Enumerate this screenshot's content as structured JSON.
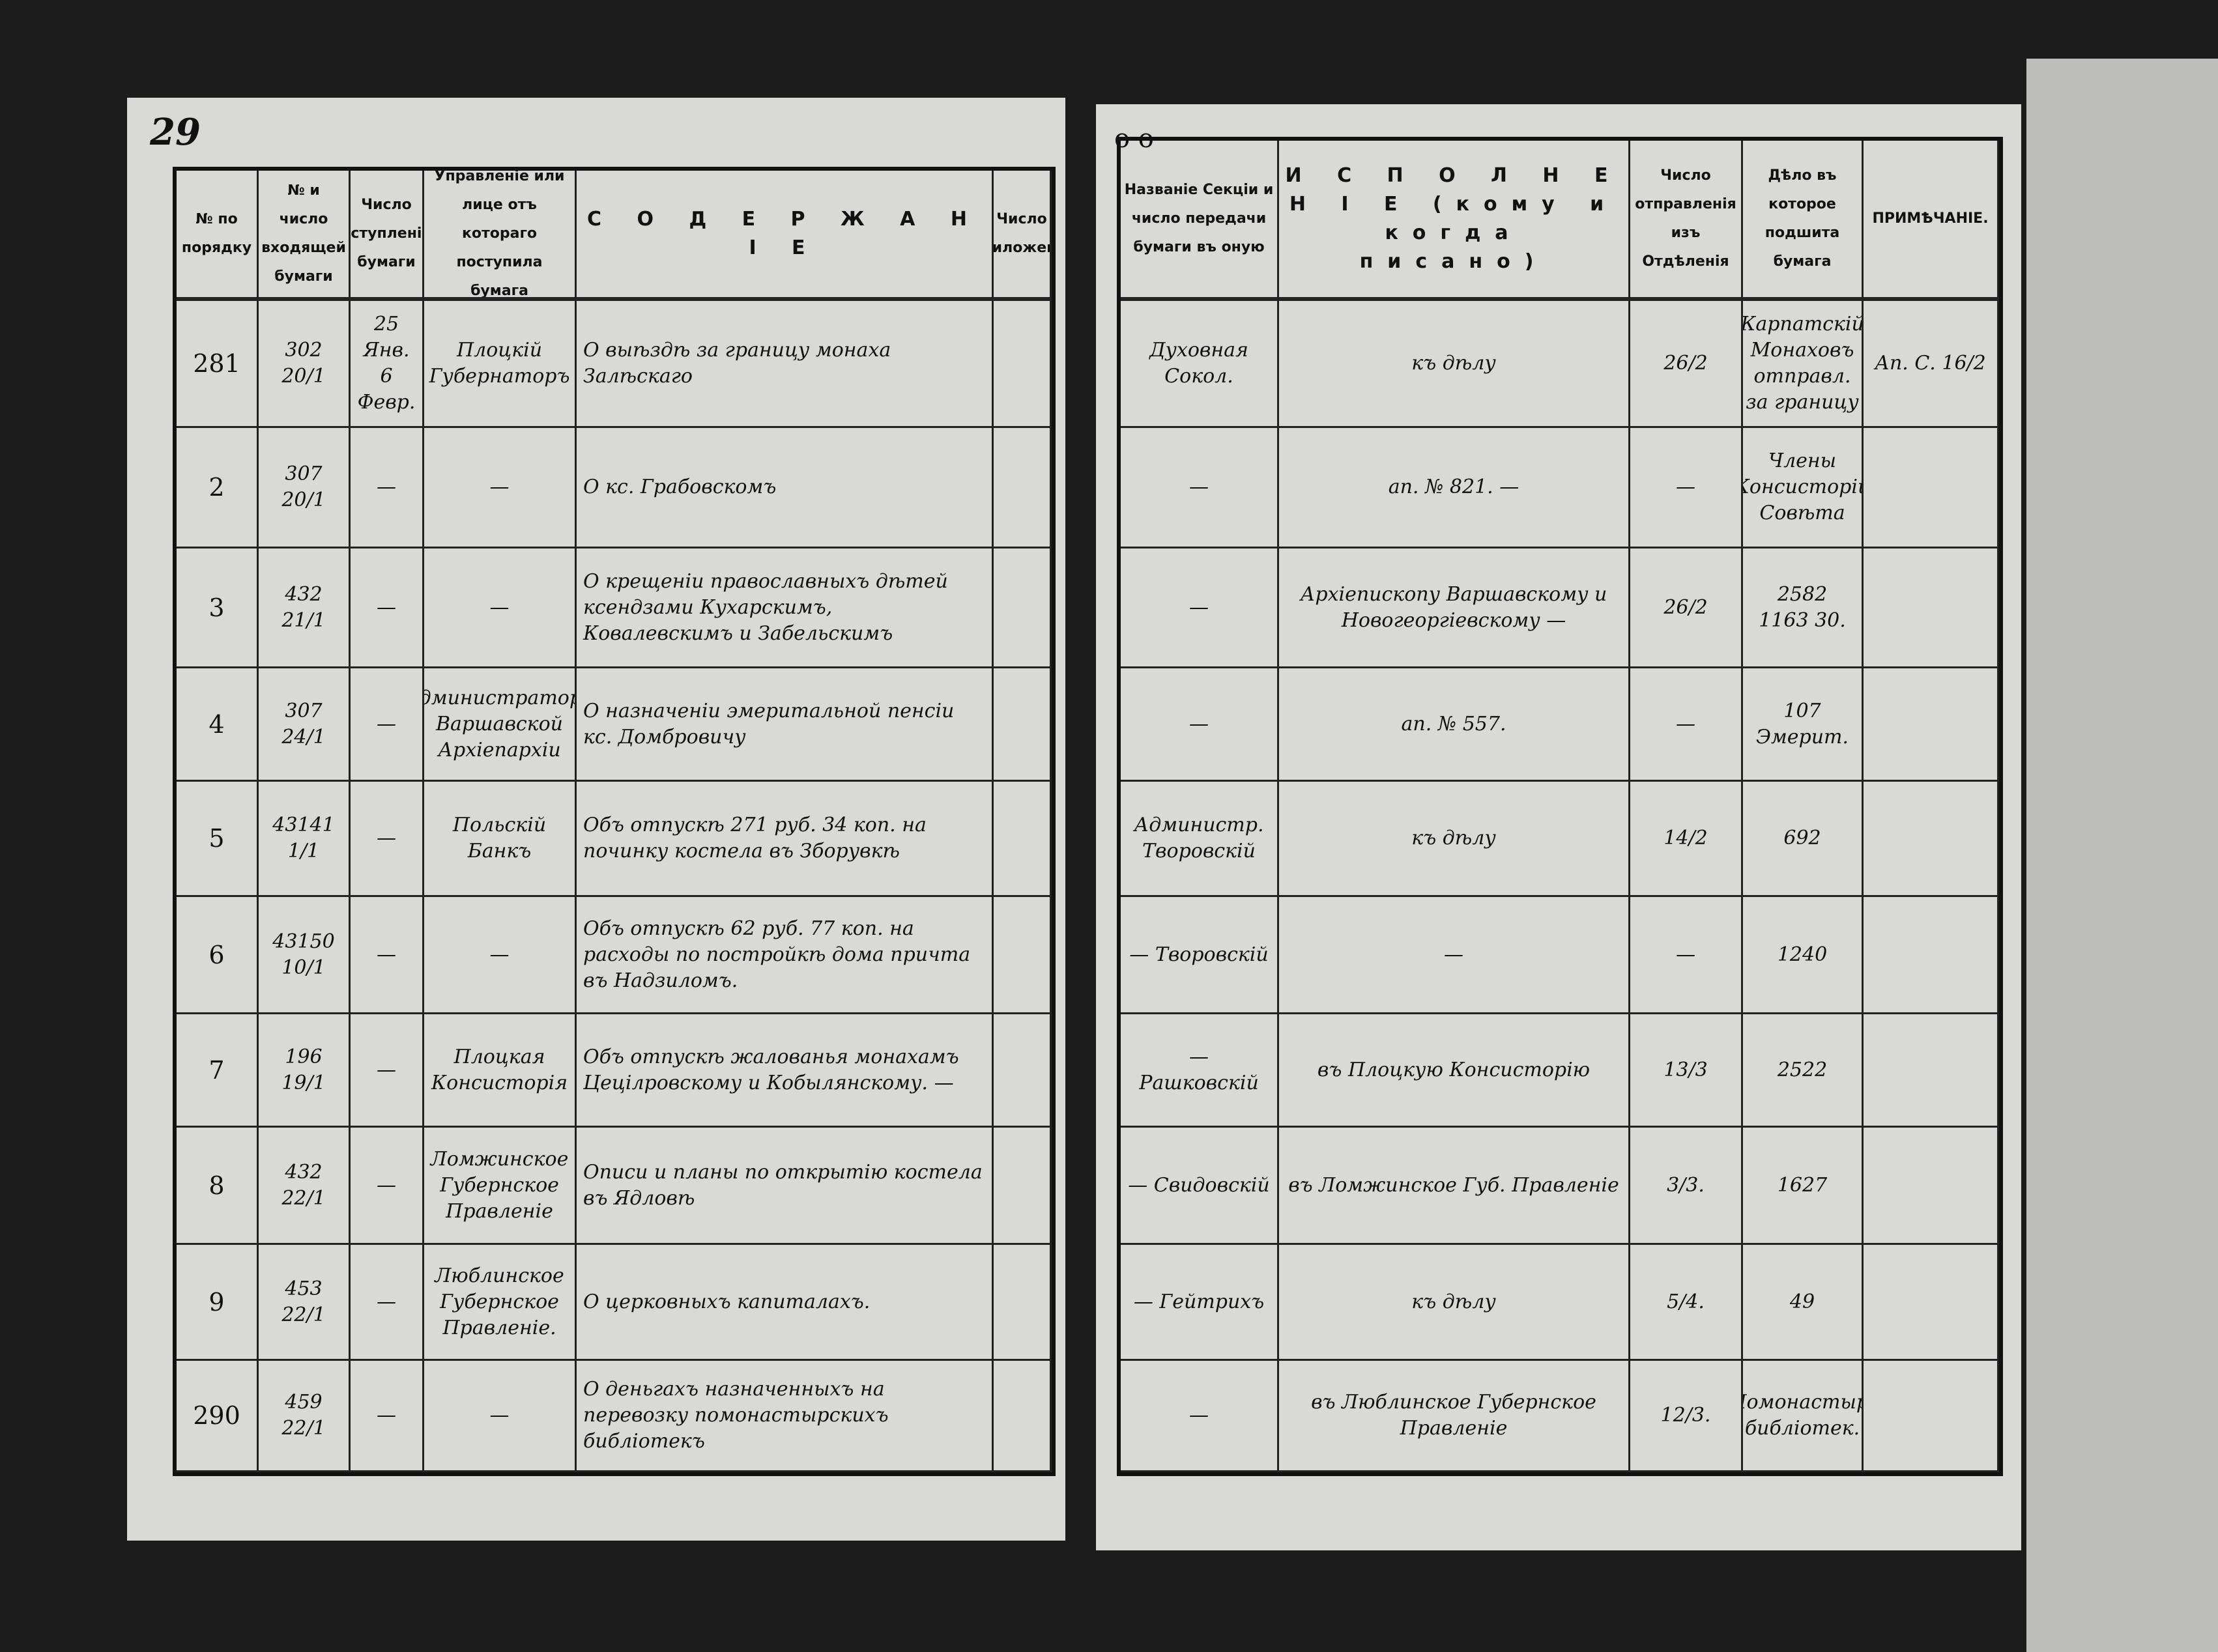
{
  "page_number": "29",
  "page_mark": "o   o",
  "left_headers": [
    "№ по порядку",
    "№ и число входящей бумаги",
    "Число вступленія бумаги",
    "Управленіе или лице отъ котораго поступила бумага",
    "С О Д Е Р Ж А Н І Е",
    "Число приложеній"
  ],
  "right_headers": [
    "Названіе Секціи и число передачи бумаги въ оную",
    "И С П О Л Н Е Н І Е (кому и когда писано)",
    "Число отправленія изъ Отдѣленія",
    "Дѣло въ которое подшита бумага",
    "ПРИМѢЧАНІЕ."
  ],
  "rows": [
    {
      "no": "281",
      "incoming": "302 20/1",
      "date": "25 Янв. 6 Февр.",
      "source": "Плоцкій Губернаторъ",
      "content": "О выѣздѣ за границу монаха Залѣскаго",
      "attach": "",
      "section": "Духовная Сокол.",
      "execution": "къ дѣлу",
      "sent": "26/2",
      "file": "Карпатскій Монаховъ отправл. за границу",
      "note": "Ап. С. 16/2"
    },
    {
      "no": "2",
      "incoming": "307 20/1",
      "date": "—",
      "source": "— ",
      "content": "О кс. Грабовскомъ",
      "attach": "",
      "section": "—",
      "execution": "ап. № 821. —",
      "sent": "—",
      "file": "Члены Консисторіи Совѣта",
      "note": ""
    },
    {
      "no": "3",
      "incoming": "432 21/1",
      "date": "—",
      "source": "—",
      "content": "О крещеніи православныхъ дѣтей ксендзами Кухарскимъ, Ковалевскимъ и Забельскимъ",
      "attach": "",
      "section": "—",
      "execution": "Архіепископу Варшавскому и Новогеоргіевскому —",
      "sent": "26/2",
      "file": "2582 1163 30.",
      "note": ""
    },
    {
      "no": "4",
      "incoming": "307 24/1",
      "date": "—",
      "source": "Администраторъ Варшавской Архіепархіи",
      "content": "О назначеніи эмеритальной пенсіи кс. Домбровичу",
      "attach": "",
      "section": "—",
      "execution": "ап. № 557.",
      "sent": "—",
      "file": "107 Эмерит.",
      "note": ""
    },
    {
      "no": "5",
      "incoming": "43141 1/1",
      "date": "—",
      "source": "Польскій Банкъ",
      "content": "Объ отпускѣ 271 руб. 34 коп. на починку костела въ Зборувкѣ",
      "attach": "",
      "section": "Администр. Творовскій",
      "execution": "къ дѣлу",
      "sent": "14/2",
      "file": "692",
      "note": ""
    },
    {
      "no": "6",
      "incoming": "43150 10/1",
      "date": "—",
      "source": "—",
      "content": "Объ отпускѣ 62 руб. 77 коп. на расходы по постройкѣ дома причта въ Надзиломъ.",
      "attach": "",
      "section": "— Творовскій",
      "execution": "—",
      "sent": "—",
      "file": "1240",
      "note": ""
    },
    {
      "no": "7",
      "incoming": "196 19/1",
      "date": "—",
      "source": "Плоцкая Консисторія",
      "content": "Объ отпускѣ жалованья монахамъ Цецілровскому и Кобылянскому. —",
      "attach": "",
      "section": "— Рашковскій",
      "execution": "въ Плоцкую Консисторію",
      "sent": "13/3",
      "file": "2522",
      "note": ""
    },
    {
      "no": "8",
      "incoming": "432 22/1",
      "date": "—",
      "source": "Ломжинское Губернское Правленіе",
      "content": "Описи и планы по открытію костела въ Ядловѣ",
      "attach": "",
      "section": "— Свидовскій",
      "execution": "въ Ломжинское Губ. Правленіе",
      "sent": "3/3.",
      "file": "1627",
      "note": ""
    },
    {
      "no": "9",
      "incoming": "453 22/1",
      "date": "—",
      "source": "Люблинское Губернское Правленіе.",
      "content": "О церковныхъ капиталахъ.",
      "attach": "",
      "section": "— Гейтрихъ",
      "execution": "къ дѣлу",
      "sent": "5/4.",
      "file": "49",
      "note": ""
    },
    {
      "no": "290",
      "incoming": "459 22/1",
      "date": "—",
      "source": "—",
      "content": "О деньгахъ назначенныхъ на перевозку помонастырскихъ библіотекъ",
      "attach": "",
      "section": "—",
      "execution": "въ Люблинское Губернское Правленіе",
      "sent": "12/3.",
      "file": "Помонастыр. библіотек.",
      "note": ""
    }
  ]
}
